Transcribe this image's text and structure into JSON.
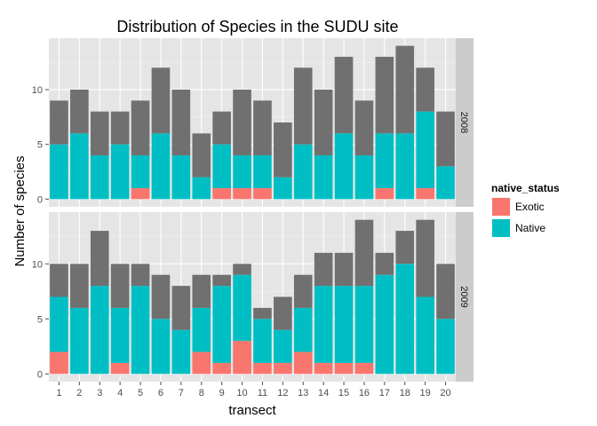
{
  "chart_data": {
    "type": "bar",
    "stacked": true,
    "title": "Distribution of Species in the SUDU site",
    "xlabel": "transect",
    "ylabel": "Number of species",
    "categories": [
      "1",
      "2",
      "3",
      "4",
      "5",
      "6",
      "7",
      "8",
      "9",
      "10",
      "11",
      "12",
      "13",
      "14",
      "15",
      "16",
      "17",
      "18",
      "19",
      "20"
    ],
    "ylim": [
      -0.7,
      14.7
    ],
    "yticks": [
      0,
      5,
      10
    ],
    "legend": {
      "title": "native_status",
      "placement": "right",
      "entries": [
        {
          "label": "Exotic",
          "color": "#F8766D"
        },
        {
          "label": "Native",
          "color": "#00BFC4"
        }
      ]
    },
    "grid": true,
    "panels": [
      {
        "label": "2008",
        "series": [
          {
            "name": "Exotic",
            "color": "#F8766D",
            "values": [
              0,
              0,
              0,
              0,
              1,
              0,
              0,
              0,
              1,
              1,
              1,
              0,
              0,
              0,
              0,
              0,
              1,
              0,
              1,
              0
            ]
          },
          {
            "name": "Native",
            "color": "#00BFC4",
            "values": [
              5,
              6,
              4,
              5,
              3,
              6,
              4,
              2,
              4,
              3,
              3,
              2,
              5,
              4,
              6,
              4,
              5,
              6,
              7,
              3
            ]
          },
          {
            "color": "#707070",
            "values": [
              4,
              4,
              4,
              3,
              5,
              6,
              6,
              4,
              3,
              6,
              5,
              5,
              7,
              6,
              7,
              5,
              7,
              8,
              4,
              5
            ]
          }
        ]
      },
      {
        "label": "2009",
        "series": [
          {
            "name": "Exotic",
            "color": "#F8766D",
            "values": [
              2,
              0,
              0,
              1,
              0,
              0,
              0,
              2,
              1,
              3,
              1,
              1,
              2,
              1,
              1,
              1,
              0,
              0,
              0,
              0
            ]
          },
          {
            "name": "Native",
            "color": "#00BFC4",
            "values": [
              5,
              6,
              8,
              5,
              8,
              5,
              4,
              4,
              7,
              6,
              4,
              3,
              4,
              7,
              7,
              7,
              9,
              10,
              7,
              5
            ]
          },
          {
            "color": "#707070",
            "values": [
              3,
              4,
              5,
              4,
              2,
              4,
              4,
              3,
              1,
              1,
              1,
              3,
              3,
              3,
              3,
              6,
              2,
              3,
              7,
              5
            ]
          }
        ]
      }
    ]
  }
}
